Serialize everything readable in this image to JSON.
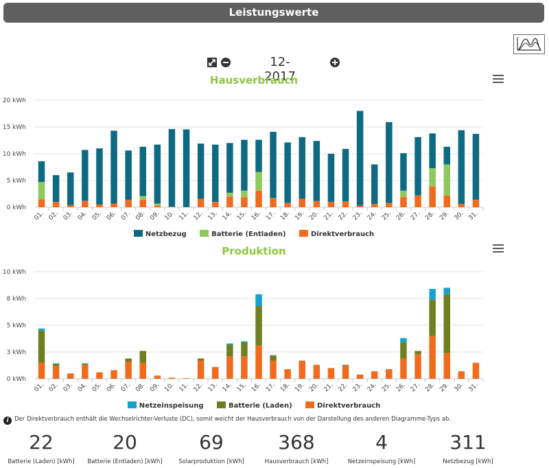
{
  "header": {
    "title": "Leistungswerte"
  },
  "nav": {
    "period": "12-2017"
  },
  "colors": {
    "netzbezug": "#0e6a82",
    "batterie_entladen": "#8fc85d",
    "direktverbrauch": "#f06b1e",
    "netzeinspeisung": "#1aa0cf",
    "batterie_laden": "#6e7f22",
    "title_green": "#8cc63f"
  },
  "icons": {
    "chart_toggle": "area-chart-icon",
    "resize": "resize-icon",
    "previous": "minus-circle-icon",
    "next": "plus-circle-icon",
    "menu": "hamburger-menu-icon",
    "info": "info-icon"
  },
  "chart_data": [
    {
      "type": "bar",
      "stacked": true,
      "title": "Hausverbrauch",
      "categories": [
        "01.",
        "02.",
        "03.",
        "04.",
        "05.",
        "06.",
        "07.",
        "08.",
        "09.",
        "10.",
        "11.",
        "12.",
        "13.",
        "14.",
        "15.",
        "16.",
        "17.",
        "18.",
        "19.",
        "20.",
        "21.",
        "22.",
        "23.",
        "24.",
        "25.",
        "26.",
        "27.",
        "28.",
        "29.",
        "30.",
        "31."
      ],
      "y_ticks": [
        "20 kWh",
        "15 kWh",
        "10 kWh",
        "5 kWh",
        "0 kWh"
      ],
      "ylim": [
        0,
        20
      ],
      "grid": true,
      "legend_position": "bottom",
      "series": [
        {
          "name": "Netzbezug",
          "values": [
            3.9,
            5.0,
            6.1,
            9.5,
            10.5,
            13.6,
            9.2,
            9.2,
            11.0,
            14.5,
            14.5,
            10.3,
            10.7,
            9.3,
            9.5,
            6.0,
            12.4,
            11.3,
            11.5,
            11.2,
            9.0,
            9.8,
            17.7,
            7.4,
            15.1,
            7.0,
            10.9,
            6.5,
            3.3,
            13.8,
            12.3
          ]
        },
        {
          "name": "Batterie (Entladen)",
          "values": [
            3.2,
            0,
            0,
            0,
            0,
            0,
            0,
            0.7,
            0.4,
            0,
            0,
            0,
            0,
            0.7,
            1.2,
            3.5,
            0.1,
            0,
            0,
            0,
            0,
            0,
            0,
            0,
            0,
            1.2,
            0,
            3.4,
            5.8,
            0,
            0
          ]
        },
        {
          "name": "Direktverbrauch",
          "values": [
            1.5,
            1.0,
            0.4,
            1.2,
            0.5,
            0.7,
            1.4,
            1.4,
            0.3,
            0.1,
            0.05,
            1.6,
            1.0,
            2.0,
            1.9,
            3.1,
            1.6,
            0.8,
            1.6,
            1.2,
            1.0,
            1.1,
            0.3,
            0.6,
            0.8,
            1.9,
            2.2,
            3.9,
            2.2,
            0.6,
            1.4
          ]
        }
      ]
    },
    {
      "type": "bar",
      "stacked": true,
      "title": "Produktion",
      "categories": [
        "01.",
        "02.",
        "03.",
        "04.",
        "05.",
        "06.",
        "07.",
        "08.",
        "09.",
        "10.",
        "11.",
        "12.",
        "13.",
        "14.",
        "15.",
        "16.",
        "17.",
        "18.",
        "19.",
        "20.",
        "21.",
        "22.",
        "23.",
        "24.",
        "25.",
        "26.",
        "27.",
        "28.",
        "29.",
        "30.",
        "31."
      ],
      "y_ticks": [
        "10 kWh",
        "8 kWh",
        "5 kWh",
        "3 kWh",
        "0 kWh"
      ],
      "ylim": [
        0,
        10
      ],
      "grid": true,
      "legend_position": "bottom",
      "series": [
        {
          "name": "Netzeinspeisung",
          "values": [
            0.2,
            0.05,
            0,
            0.05,
            0,
            0,
            0,
            0,
            0,
            0,
            0,
            0,
            0,
            0.1,
            0.1,
            1.1,
            0,
            0,
            0,
            0,
            0,
            0,
            0,
            0,
            0,
            0.4,
            0,
            1.0,
            0.6,
            0,
            0
          ]
        },
        {
          "name": "Batterie (Laden)",
          "values": [
            3.0,
            0.2,
            0,
            0.1,
            0,
            0,
            0.3,
            1.1,
            0,
            0,
            0,
            0.2,
            0,
            1.1,
            1.3,
            3.7,
            0.5,
            0,
            0,
            0,
            0,
            0.1,
            0,
            0,
            0,
            1.5,
            0.3,
            3.4,
            5.5,
            0,
            0
          ]
        },
        {
          "name": "Direktverbrauch",
          "values": [
            1.5,
            1.2,
            0.5,
            1.3,
            0.6,
            0.8,
            1.6,
            1.5,
            0.3,
            0.1,
            0.05,
            1.7,
            1.1,
            2.1,
            2.1,
            3.1,
            1.7,
            0.9,
            1.7,
            1.3,
            1.0,
            1.2,
            0.4,
            0.7,
            0.9,
            1.9,
            2.3,
            4.0,
            2.4,
            0.7,
            1.5
          ]
        }
      ]
    }
  ],
  "info_note": "Der Direktverbrauch enthält die Wechselrichter-Verluste (DC), somit weicht der Hausverbrauch von der Darstellung des anderen Diagramme-Typs ab.",
  "stats": [
    {
      "value": "22",
      "label": "Batterie (Laden) [kWh]"
    },
    {
      "value": "20",
      "label": "Batterie (Entladen) [kWh]"
    },
    {
      "value": "69",
      "label": "Solarproduktion [kWh]"
    },
    {
      "value": "368",
      "label": "Hausverbrauch [kWh]"
    },
    {
      "value": "4",
      "label": "Netzeinspeisung [kWh]"
    },
    {
      "value": "311",
      "label": "Netzbezug [kWh]"
    }
  ]
}
